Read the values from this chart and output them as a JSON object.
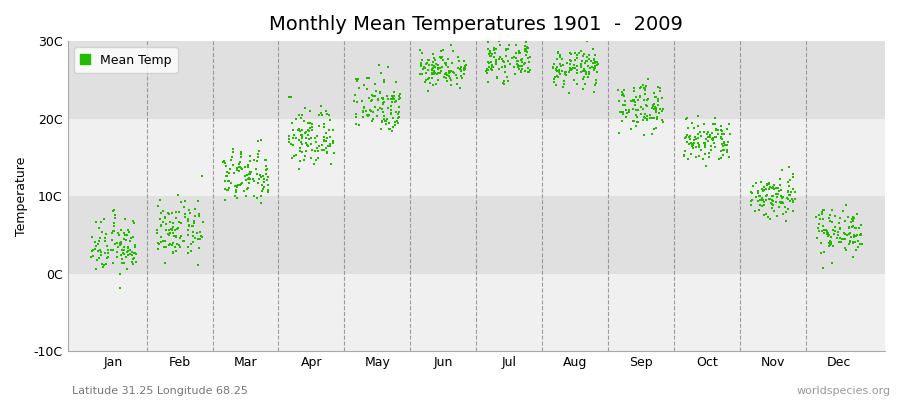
{
  "title": "Monthly Mean Temperatures 1901  -  2009",
  "ylabel": "Temperature",
  "ylim": [
    -10,
    30
  ],
  "yticks": [
    -10,
    0,
    10,
    20,
    30
  ],
  "ytick_labels": [
    "-10C",
    "0C",
    "10C",
    "20C",
    "30C"
  ],
  "months": [
    "Jan",
    "Feb",
    "Mar",
    "Apr",
    "May",
    "Jun",
    "Jul",
    "Aug",
    "Sep",
    "Oct",
    "Nov",
    "Dec"
  ],
  "month_means": [
    3.5,
    5.5,
    12.5,
    17.5,
    22.0,
    26.5,
    27.5,
    26.5,
    21.5,
    17.0,
    10.0,
    5.5
  ],
  "month_stds": [
    1.8,
    1.8,
    1.8,
    2.0,
    2.0,
    1.2,
    1.2,
    1.2,
    1.5,
    1.5,
    1.5,
    1.5
  ],
  "n_years": 109,
  "dot_color": "#22BB00",
  "dot_size": 4,
  "bg_light": "#F0F0F0",
  "bg_dark": "#E0E0E0",
  "figure_background": "#FFFFFF",
  "legend_label": "Mean Temp",
  "bottom_left_text": "Latitude 31.25 Longitude 68.25",
  "bottom_right_text": "worldspecies.org",
  "title_fontsize": 14,
  "label_fontsize": 9,
  "tick_fontsize": 9
}
